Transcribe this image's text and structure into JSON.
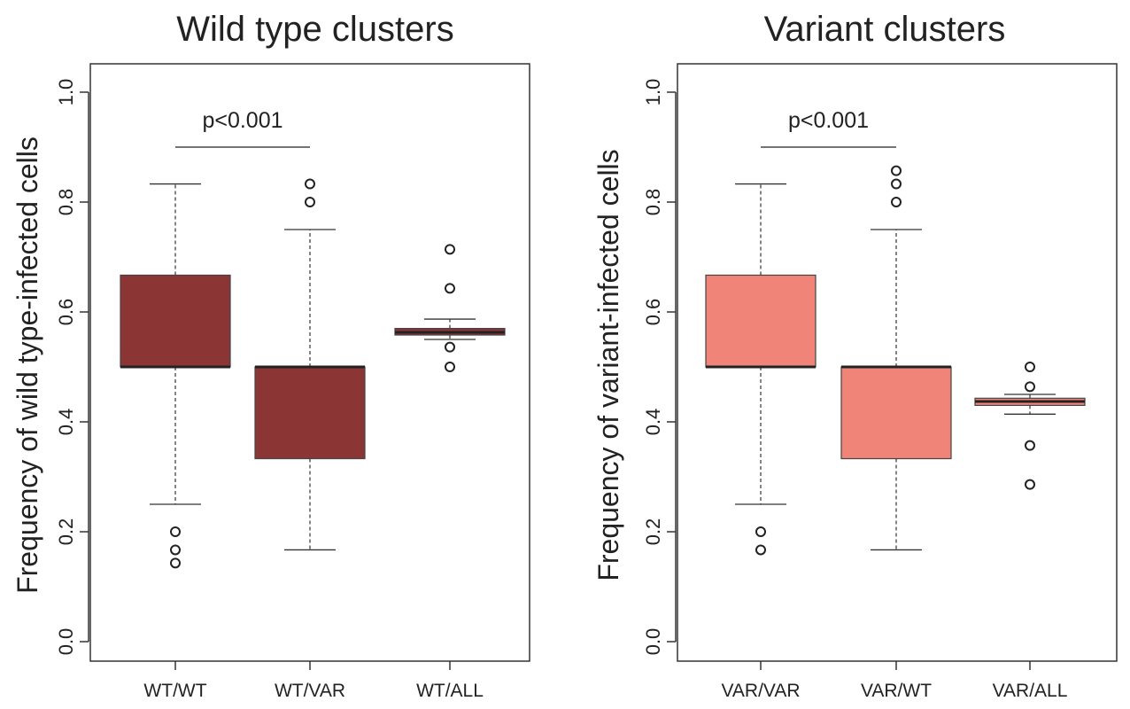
{
  "chart_data": [
    {
      "type": "box",
      "title": "Wild type clusters",
      "ylabel": "Frequency of wild type-infected cells",
      "xlabel": "",
      "ylim": [
        0.0,
        1.0
      ],
      "yticks": [
        "0.0",
        "0.2",
        "0.4",
        "0.6",
        "0.8",
        "1.0"
      ],
      "box_color": "#8B3535",
      "categories": [
        "WT/WT",
        "WT/VAR",
        "WT/ALL"
      ],
      "boxes": [
        {
          "category": "WT/WT",
          "whisker_low": 0.25,
          "q1": 0.5,
          "median": 0.5,
          "q3": 0.667,
          "whisker_high": 0.833,
          "outliers": [
            0.2,
            0.167,
            0.143
          ]
        },
        {
          "category": "WT/VAR",
          "whisker_low": 0.167,
          "q1": 0.333,
          "median": 0.5,
          "q3": 0.5,
          "whisker_high": 0.75,
          "outliers": [
            0.833,
            0.8
          ]
        },
        {
          "category": "WT/ALL",
          "whisker_low": 0.55,
          "q1": 0.558,
          "median": 0.563,
          "q3": 0.57,
          "whisker_high": 0.587,
          "outliers": [
            0.714,
            0.643,
            0.536,
            0.5
          ]
        }
      ],
      "annotation": {
        "text": "p<0.001",
        "from": "WT/WT",
        "to": "WT/VAR",
        "y": 0.9
      }
    },
    {
      "type": "box",
      "title": "Variant clusters",
      "ylabel": "Frequency of variant-infected cells",
      "xlabel": "",
      "ylim": [
        0.0,
        1.0
      ],
      "yticks": [
        "0.0",
        "0.2",
        "0.4",
        "0.6",
        "0.8",
        "1.0"
      ],
      "box_color": "#F08478",
      "categories": [
        "VAR/VAR",
        "VAR/WT",
        "VAR/ALL"
      ],
      "boxes": [
        {
          "category": "VAR/VAR",
          "whisker_low": 0.25,
          "q1": 0.5,
          "median": 0.5,
          "q3": 0.667,
          "whisker_high": 0.833,
          "outliers": [
            0.2,
            0.167
          ]
        },
        {
          "category": "VAR/WT",
          "whisker_low": 0.167,
          "q1": 0.333,
          "median": 0.5,
          "q3": 0.5,
          "whisker_high": 0.75,
          "outliers": [
            0.857,
            0.833,
            0.8
          ]
        },
        {
          "category": "VAR/ALL",
          "whisker_low": 0.414,
          "q1": 0.43,
          "median": 0.437,
          "q3": 0.443,
          "whisker_high": 0.45,
          "outliers": [
            0.5,
            0.464,
            0.357,
            0.286
          ]
        }
      ],
      "annotation": {
        "text": "p<0.001",
        "from": "VAR/VAR",
        "to": "VAR/WT",
        "y": 0.9
      }
    }
  ]
}
